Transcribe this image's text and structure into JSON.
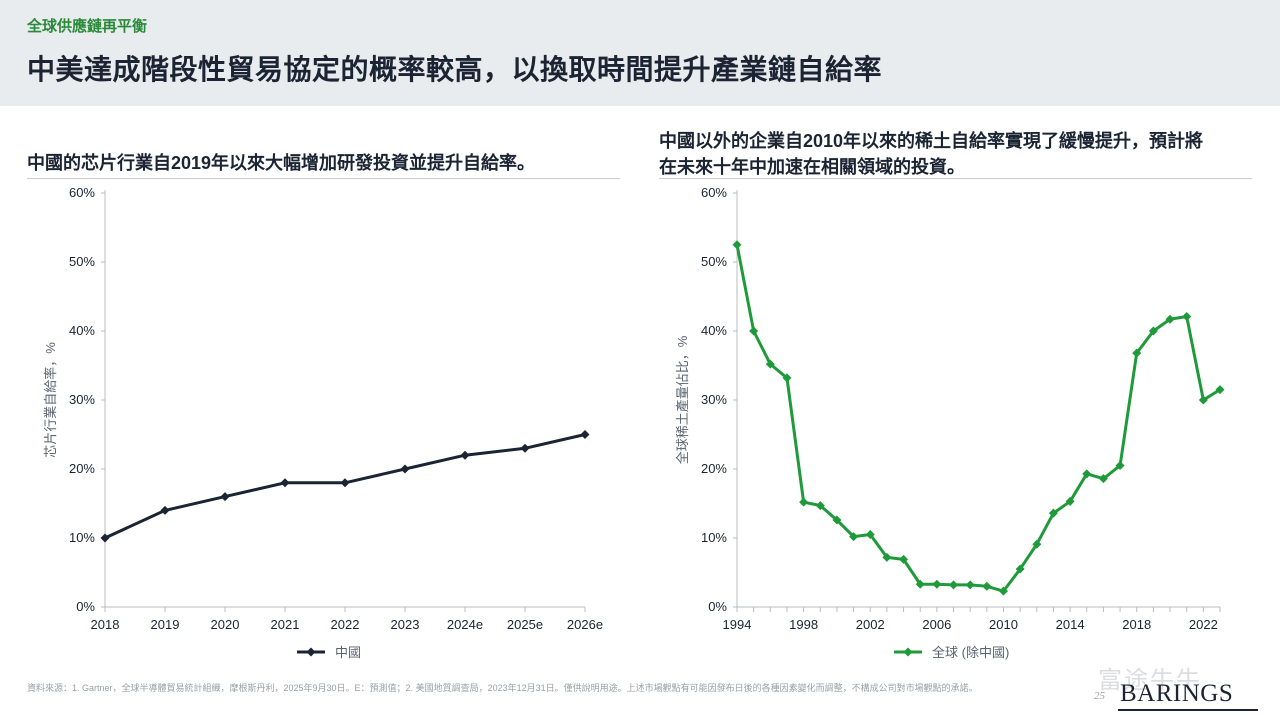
{
  "header": {
    "section_tag": "全球供應鏈再平衡",
    "title": "中美達成階段性貿易協定的概率較高，以換取時間提升產業鏈自給率"
  },
  "left_panel": {
    "title_line1": "中國的芯片行業自2019年以來大幅增加研發投資並提升自給率。"
  },
  "right_panel": {
    "title_line1": "中國以外的企業自2010年以來的稀土自給率實現了緩慢提升，預計將",
    "title_line2": "在未來十年中加速在相關領域的投資。"
  },
  "footer": {
    "footnote": "資料來源：1. Gartner，全球半導體貿易統計組織，摩根斯丹利，2025年9月30日。E：預測值；2. 美國地質調查局，2023年12月31日。僅供說明用途。上述市場觀點有可能因發布日後的各種因素變化而調整，不構成公司對市場觀點的承諾。",
    "page_number": "25",
    "watermark": "富途牛牛",
    "logo": "BARINGS"
  },
  "colors": {
    "accent_green": "#2a8a3a",
    "navy": "#1b2433",
    "series_green": "#1f9a3a"
  },
  "chart_data": [
    {
      "type": "line",
      "title": "",
      "ylabel": "芯片行業自給率，%",
      "xlabel": "",
      "categories": [
        "2018",
        "2019",
        "2020",
        "2021",
        "2022",
        "2023",
        "2024e",
        "2025e",
        "2026e"
      ],
      "series": [
        {
          "name": "中國",
          "values": [
            10,
            14,
            16,
            18,
            18,
            20,
            22,
            23,
            25
          ]
        }
      ],
      "ylim": [
        0,
        60
      ],
      "yticks": [
        "0%",
        "10%",
        "20%",
        "30%",
        "40%",
        "50%",
        "60%"
      ],
      "grid": false,
      "legend": "bottom-center",
      "color": "#1b2433"
    },
    {
      "type": "line",
      "title": "",
      "ylabel": "全球稀土產量佔比，%",
      "xlabel": "",
      "x": [
        1994,
        1995,
        1996,
        1997,
        1998,
        1999,
        2000,
        2001,
        2002,
        2003,
        2004,
        2005,
        2006,
        2007,
        2008,
        2009,
        2010,
        2011,
        2012,
        2013,
        2014,
        2015,
        2016,
        2017,
        2018,
        2019,
        2020,
        2021,
        2022,
        2023
      ],
      "xticks": [
        "1994",
        "1998",
        "2002",
        "2006",
        "2010",
        "2014",
        "2018",
        "2022"
      ],
      "series": [
        {
          "name": "全球 (除中國)",
          "values": [
            52.5,
            40,
            35.2,
            33.2,
            15.2,
            14.7,
            12.6,
            10.2,
            10.5,
            7.2,
            6.9,
            3.3,
            3.3,
            3.2,
            3.2,
            3.0,
            2.3,
            5.5,
            9.1,
            13.6,
            15.3,
            19.3,
            18.6,
            20.5,
            36.8,
            40,
            41.7,
            42.1,
            30,
            31.5
          ]
        }
      ],
      "ylim": [
        0,
        60
      ],
      "yticks": [
        "0%",
        "10%",
        "20%",
        "30%",
        "40%",
        "50%",
        "60%"
      ],
      "grid": false,
      "legend": "bottom-center",
      "color": "#1f9a3a"
    }
  ]
}
